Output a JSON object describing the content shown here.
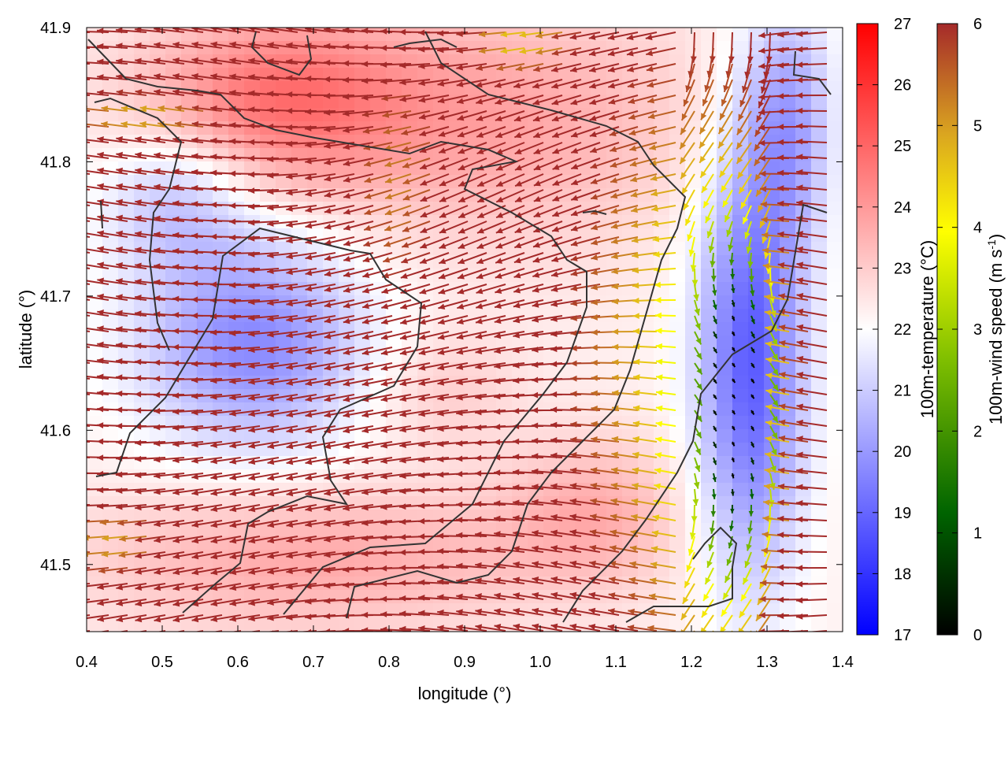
{
  "chart_data": {
    "type": "heatmap",
    "title": "",
    "xlabel": "longitude (°)",
    "ylabel": "latitude (°)",
    "xlim": [
      0.4,
      1.4
    ],
    "ylim": [
      41.45,
      41.9
    ],
    "xticks": [
      "0.4",
      "0.5",
      "0.6",
      "0.7",
      "0.8",
      "0.9",
      "1.0",
      "1.1",
      "1.2",
      "1.3",
      "1.4"
    ],
    "yticks": [
      "41.5",
      "41.6",
      "41.7",
      "41.8",
      "41.9"
    ],
    "overlay": "wind vectors (arrows colored by speed) and terrain contour lines",
    "temperature_colorbar": {
      "label": "100m-temperature (°C)",
      "min": 17,
      "max": 27,
      "ticks": [
        "17",
        "18",
        "19",
        "20",
        "21",
        "22",
        "23",
        "24",
        "25",
        "26",
        "27"
      ],
      "colors": [
        "#0000ff",
        "#ffffff",
        "#ff0000"
      ]
    },
    "wind_colorbar": {
      "label": "100m-wind speed (m s-1)",
      "label_main": "100m-wind speed (m s",
      "label_sup": "-1",
      "label_end": ")",
      "min": 0,
      "max": 6,
      "ticks": [
        "0",
        "1",
        "2",
        "3",
        "4",
        "5",
        "6"
      ],
      "colors": [
        "#000000",
        "#006400",
        "#7fbf00",
        "#ffff00",
        "#daa520",
        "#a52a2a"
      ]
    }
  }
}
